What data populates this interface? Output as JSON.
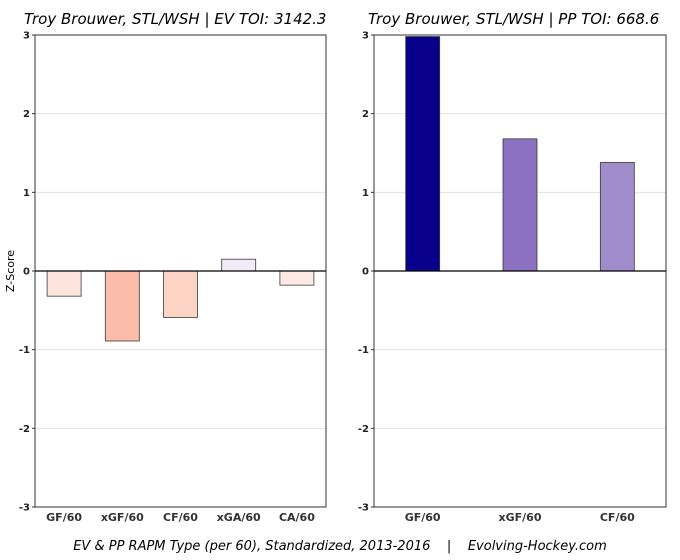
{
  "caption": "EV & PP RAPM Type (per 60), Standardized, 2013-2016    |    Evolving-Hockey.com",
  "chart_data": [
    {
      "type": "bar",
      "title": "Troy Brouwer, STL/WSH  |  EV TOI: 3142.3",
      "ylabel": "Z-Score",
      "ylim": [
        -3,
        3
      ],
      "yticks": [
        -3,
        -2,
        -1,
        0,
        1,
        2,
        3
      ],
      "categories": [
        "GF/60",
        "xGF/60",
        "CF/60",
        "xGA/60",
        "CA/60"
      ],
      "values": [
        -0.32,
        -0.89,
        -0.59,
        0.15,
        -0.18
      ],
      "colors": [
        "#fde5dc",
        "#fcbcaa",
        "#fdd3c6",
        "#efebf7",
        "#fdeae4"
      ]
    },
    {
      "type": "bar",
      "title": "Troy Brouwer, STL/WSH  |  PP TOI: 668.6",
      "ylabel": "",
      "ylim": [
        -3,
        3
      ],
      "yticks": [
        -3,
        -2,
        -1,
        0,
        1,
        2,
        3
      ],
      "categories": [
        "GF/60",
        "xGF/60",
        "CF/60"
      ],
      "values": [
        2.98,
        1.68,
        1.38
      ],
      "colors": [
        "#08008a",
        "#8b71c0",
        "#a08bcb"
      ]
    }
  ]
}
